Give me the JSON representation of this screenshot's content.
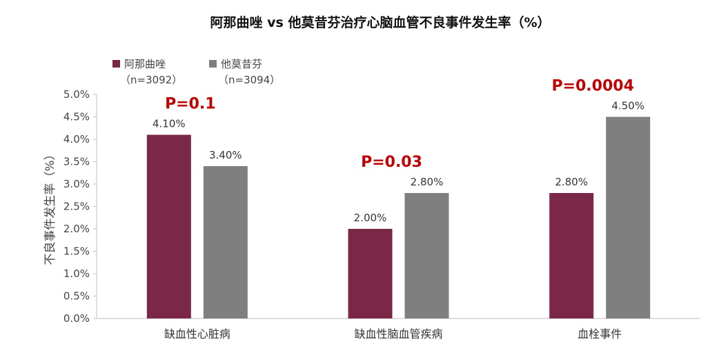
{
  "chart_data": {
    "type": "bar",
    "title": "阿那曲唑 vs 他莫昔芬治疗心脑血管不良事件发生率（%）",
    "ylabel": "不良事件发生率（%）",
    "xlabel": "",
    "ylim": [
      0,
      5.0
    ],
    "ytick_step": 0.5,
    "categories": [
      "缺血性心脏病",
      "缺血性脑血管疾病",
      "血栓事件"
    ],
    "series": [
      {
        "name": "阿那曲唑",
        "n_label": "（n=3092）",
        "color": "#7b2748",
        "values": [
          4.1,
          2.0,
          2.8
        ],
        "labels": [
          "4.10%",
          "2.00%",
          "2.80%"
        ]
      },
      {
        "name": "他莫昔芬",
        "n_label": "（n=3094）",
        "color": "#7f7f7f",
        "values": [
          3.4,
          2.8,
          4.5
        ],
        "labels": [
          "3.40%",
          "2.80%",
          "4.50%"
        ]
      }
    ],
    "p_values": [
      "P=0.1",
      "P=0.03",
      "P=0.0004"
    ],
    "legend_position": "top-left"
  }
}
